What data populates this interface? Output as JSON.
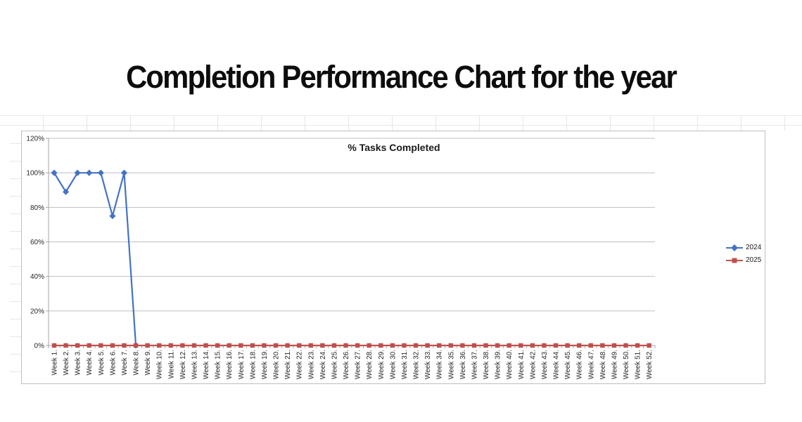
{
  "page": {
    "title": "Completion Performance Chart for the year"
  },
  "chart_data": {
    "type": "line",
    "title": "% Tasks Completed",
    "categories": [
      "Week 1.",
      "Week 2.",
      "Week 3.",
      "Week 4.",
      "Week 5.",
      "Week 6.",
      "Week 7.",
      "Week 8.",
      "Week 9.",
      "Week 10.",
      "Week 11.",
      "Week 12.",
      "Week 13.",
      "Week 14.",
      "Week 15.",
      "Week 16.",
      "Week 17.",
      "Week 18.",
      "Week 19.",
      "Week 20.",
      "Week 21.",
      "Week 22.",
      "Week 23.",
      "Week 24.",
      "Week 25.",
      "Week 26.",
      "Week 27.",
      "Week 28.",
      "Week 29.",
      "Week 30.",
      "Week 31.",
      "Week 32.",
      "Week 33.",
      "Week 34.",
      "Week 35.",
      "Week 36.",
      "Week 37.",
      "Week 38.",
      "Week 39.",
      "Week 40.",
      "Week 41.",
      "Week 42.",
      "Week 43.",
      "Week 44.",
      "Week 45.",
      "Week 46.",
      "Week 47.",
      "Week 48.",
      "Week 49.",
      "Week 50.",
      "Week 51.",
      "Week 52."
    ],
    "series": [
      {
        "name": "2024",
        "color": "#4472c4",
        "marker": "diamond",
        "values": [
          100,
          89,
          100,
          100,
          100,
          75,
          100,
          0,
          null,
          null,
          null,
          null,
          null,
          null,
          null,
          null,
          null,
          null,
          null,
          null,
          null,
          null,
          null,
          null,
          null,
          null,
          null,
          null,
          null,
          null,
          null,
          null,
          null,
          null,
          null,
          null,
          null,
          null,
          null,
          null,
          null,
          null,
          null,
          null,
          null,
          null,
          null,
          null,
          null,
          null,
          null,
          null
        ]
      },
      {
        "name": "2025",
        "color": "#c0504d",
        "marker": "square",
        "values": [
          0,
          0,
          0,
          0,
          0,
          0,
          0,
          0,
          0,
          0,
          0,
          0,
          0,
          0,
          0,
          0,
          0,
          0,
          0,
          0,
          0,
          0,
          0,
          0,
          0,
          0,
          0,
          0,
          0,
          0,
          0,
          0,
          0,
          0,
          0,
          0,
          0,
          0,
          0,
          0,
          0,
          0,
          0,
          0,
          0,
          0,
          0,
          0,
          0,
          0,
          0,
          0
        ]
      }
    ],
    "ylim": [
      0,
      120
    ],
    "ytick_step": 20,
    "ytick_labels": [
      "0%",
      "20%",
      "40%",
      "60%",
      "80%",
      "100%",
      "120%"
    ],
    "ylabel": "",
    "xlabel": "",
    "grid": true,
    "legend_position": "right",
    "axis_color": "#a6a6a6",
    "gridline_color": "#bfbfbf",
    "tick_label_color": "#262626"
  }
}
